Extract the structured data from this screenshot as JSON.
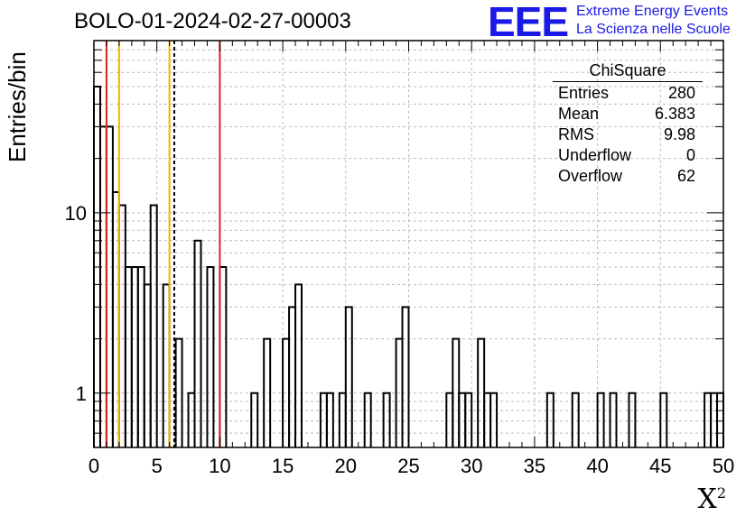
{
  "header": {
    "title": "BOLO-01-2024-02-27-00003",
    "logo_text": "EEE",
    "logo_line1": "Extreme Energy Events",
    "logo_line2": "La Scienza nelle Scuole"
  },
  "stats_box": {
    "title": "ChiSquare",
    "rows": [
      {
        "label": "Entries",
        "value": "280"
      },
      {
        "label": "Mean",
        "value": "6.383"
      },
      {
        "label": "RMS",
        "value": "9.98"
      },
      {
        "label": "Underflow",
        "value": "0"
      },
      {
        "label": "Overflow",
        "value": "62"
      }
    ]
  },
  "chart_data": {
    "type": "histogram",
    "xlabel_base": "X",
    "xlabel_sup": "2",
    "ylabel": "Entries/bin",
    "xlim": [
      0,
      50
    ],
    "ylim": [
      0.5,
      90
    ],
    "y_scale": "log",
    "bin_width": 0.5,
    "grid": true,
    "x_ticks": [
      0,
      5,
      10,
      15,
      20,
      25,
      30,
      35,
      40,
      45,
      50
    ],
    "y_ticks": [
      1,
      10
    ],
    "bins": [
      {
        "x": 0.0,
        "y": 50
      },
      {
        "x": 0.5,
        "y": 30
      },
      {
        "x": 1.0,
        "y": 30
      },
      {
        "x": 1.5,
        "y": 13
      },
      {
        "x": 2.0,
        "y": 11
      },
      {
        "x": 2.5,
        "y": 5
      },
      {
        "x": 3.0,
        "y": 5
      },
      {
        "x": 3.5,
        "y": 5
      },
      {
        "x": 4.0,
        "y": 4
      },
      {
        "x": 4.5,
        "y": 11
      },
      {
        "x": 5.0,
        "y": 0
      },
      {
        "x": 5.5,
        "y": 4
      },
      {
        "x": 6.0,
        "y": 0
      },
      {
        "x": 6.5,
        "y": 2
      },
      {
        "x": 7.0,
        "y": 0
      },
      {
        "x": 7.5,
        "y": 1
      },
      {
        "x": 8.0,
        "y": 7
      },
      {
        "x": 8.5,
        "y": 0
      },
      {
        "x": 9.0,
        "y": 5
      },
      {
        "x": 9.5,
        "y": 0
      },
      {
        "x": 10.0,
        "y": 5
      },
      {
        "x": 12.5,
        "y": 1
      },
      {
        "x": 13.0,
        "y": 0
      },
      {
        "x": 13.5,
        "y": 2
      },
      {
        "x": 15.0,
        "y": 2
      },
      {
        "x": 15.5,
        "y": 3
      },
      {
        "x": 16.0,
        "y": 4
      },
      {
        "x": 18.0,
        "y": 1
      },
      {
        "x": 18.5,
        "y": 1
      },
      {
        "x": 19.5,
        "y": 1
      },
      {
        "x": 20.0,
        "y": 3
      },
      {
        "x": 21.5,
        "y": 1
      },
      {
        "x": 23.0,
        "y": 1
      },
      {
        "x": 24.0,
        "y": 2
      },
      {
        "x": 24.5,
        "y": 3
      },
      {
        "x": 28.0,
        "y": 1
      },
      {
        "x": 28.5,
        "y": 2
      },
      {
        "x": 29.0,
        "y": 1
      },
      {
        "x": 29.5,
        "y": 1
      },
      {
        "x": 30.5,
        "y": 2
      },
      {
        "x": 31.0,
        "y": 1
      },
      {
        "x": 31.5,
        "y": 1
      },
      {
        "x": 36.0,
        "y": 1
      },
      {
        "x": 38.0,
        "y": 1
      },
      {
        "x": 40.0,
        "y": 1
      },
      {
        "x": 41.0,
        "y": 1
      },
      {
        "x": 42.5,
        "y": 1
      },
      {
        "x": 45.0,
        "y": 1
      },
      {
        "x": 48.5,
        "y": 1
      },
      {
        "x": 49.0,
        "y": 1
      },
      {
        "x": 49.5,
        "y": 1
      }
    ],
    "vertical_lines": [
      {
        "x": 1.0,
        "color": "#e02020",
        "style": "solid"
      },
      {
        "x": 2.0,
        "color": "#f0b400",
        "style": "solid"
      },
      {
        "x": 6.0,
        "color": "#f0b400",
        "style": "solid"
      },
      {
        "x": 6.383,
        "color": "#000000",
        "style": "dashed"
      },
      {
        "x": 10.0,
        "color": "#e02020",
        "style": "solid"
      }
    ]
  }
}
